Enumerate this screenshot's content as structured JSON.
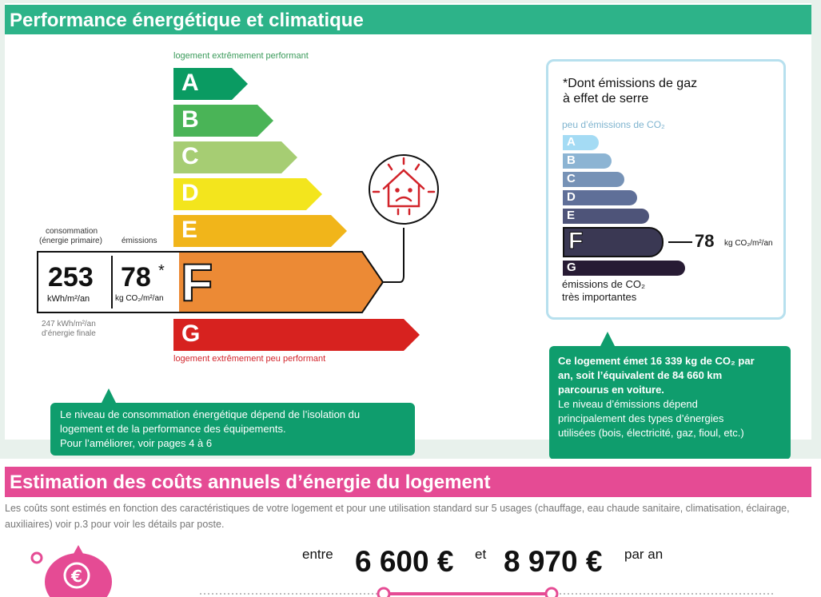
{
  "sections": {
    "performance_title": "Performance énergétique et climatique",
    "costs_title": "Estimation des coûts annuels d’énergie du logement"
  },
  "energy_scale": {
    "top_label": "logement extrêmement performant",
    "bottom_label": "logement extrêmement peu performant",
    "classes": [
      {
        "letter": "A",
        "color": "#0a9b62"
      },
      {
        "letter": "B",
        "color": "#4ab457"
      },
      {
        "letter": "C",
        "color": "#a6cd73"
      },
      {
        "letter": "D",
        "color": "#f3e51d"
      },
      {
        "letter": "E",
        "color": "#f1b51a"
      },
      {
        "letter": "F",
        "color": "#ec8a35"
      },
      {
        "letter": "G",
        "color": "#d7221f"
      }
    ],
    "current_class": "F"
  },
  "consumption": {
    "label_consumption": "consommation",
    "label_primary": "(énergie primaire)",
    "label_emissions": "émissions",
    "value": "253",
    "unit": "kWh/m²/an",
    "emissions_value": "78",
    "emissions_star": "*",
    "emissions_unit": "kg CO₂/m²/an",
    "final_energy_line1": "247 kWh/m²/an",
    "final_energy_line2": "d’énergie finale"
  },
  "callout_energy": {
    "line1": "Le niveau de consommation énergétique dépend de l’isolation du",
    "line2": "logement et de la performance des équipements.",
    "line3": "Pour l’améliorer, voir pages 4 à 6"
  },
  "co2_scale": {
    "note_line1": "*Dont émissions de gaz",
    "note_line2": "à effet de serre",
    "top_label": "peu d’émissions de CO₂",
    "classes": [
      {
        "letter": "A",
        "color": "#a4dbf4"
      },
      {
        "letter": "B",
        "color": "#8cb4d3"
      },
      {
        "letter": "C",
        "color": "#7692b6"
      },
      {
        "letter": "D",
        "color": "#5f6f98"
      },
      {
        "letter": "E",
        "color": "#4e5479"
      },
      {
        "letter": "F",
        "color": "#3a3853"
      },
      {
        "letter": "G",
        "color": "#271b34"
      }
    ],
    "current_class": "F",
    "value": "78",
    "unit": "kg CO₂/m²/an",
    "bottom_line1": "émissions de CO₂",
    "bottom_line2": "très importantes"
  },
  "callout_co2": {
    "line1": "Ce logement émet 16 339 kg de CO₂ par",
    "line2": "an, soit l’équivalent de 84 660 km",
    "line3": "parcourus en voiture.",
    "line4": "Le niveau d’émissions dépend",
    "line5": "principalement des types d’énergies",
    "line6": "utilisées (bois, électricité, gaz, fioul, etc.)"
  },
  "costs": {
    "description": "Les coûts sont estimés en fonction des caractéristiques de votre logement et pour une utilisation standard sur 5 usages (chauffage, eau chaude sanitaire, climatisation, éclairage, auxiliaires) voir p.3 pour voir les détails par poste.",
    "between": "entre",
    "low": "6 600 €",
    "and": "et",
    "high": "8 970 €",
    "per_year": "par an"
  }
}
